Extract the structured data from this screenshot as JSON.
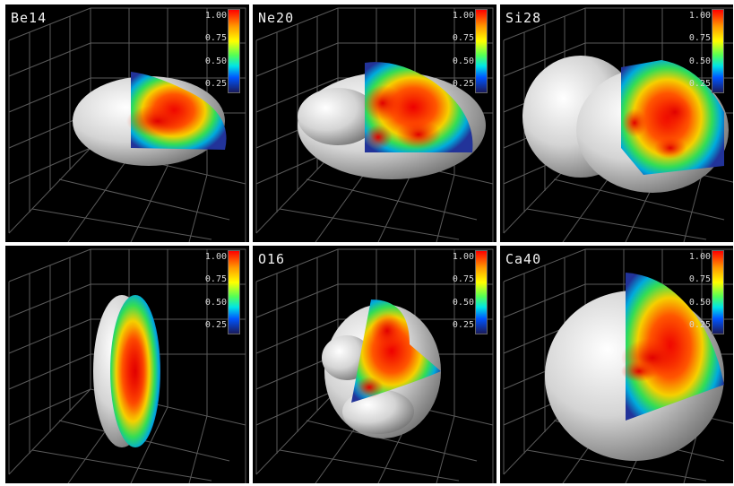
{
  "colorbar": {
    "ticks": [
      "1.00",
      "0.75",
      "0.50",
      "0.25"
    ],
    "colors": [
      "#ff0000",
      "#ff9900",
      "#ffff00",
      "#55ff55",
      "#00e5e5",
      "#0055ff",
      "#1a1a5a"
    ]
  },
  "panels": [
    {
      "label": "Be14"
    },
    {
      "label": "Ne20"
    },
    {
      "label": "Si28"
    },
    {
      "label": ""
    },
    {
      "label": "O16"
    },
    {
      "label": "Ca40"
    }
  ]
}
